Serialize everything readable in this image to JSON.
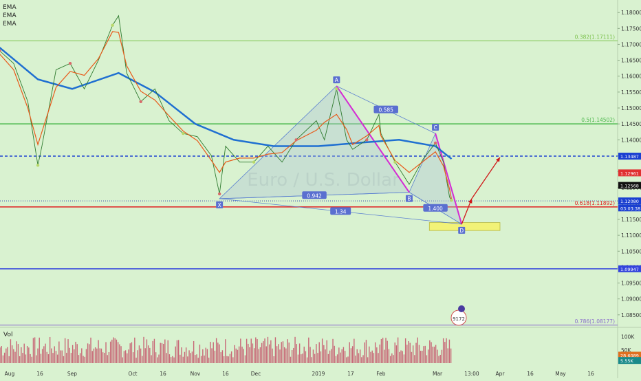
{
  "indicators": [
    "EMA",
    "EMA",
    "EMA"
  ],
  "watermark": "Euro / U.S. Dollar",
  "volume_label": "Vol",
  "x_labels": [
    "Aug",
    "16",
    "Sep",
    "Oct",
    "16",
    "Nov",
    "16",
    "Dec",
    "2019",
    "17",
    "Feb",
    "Mar",
    "13:00",
    "Apr",
    "16",
    "May",
    "16"
  ],
  "price_ticks": [
    "1.18000",
    "1.17500",
    "1.17000",
    "1.16500",
    "1.16000",
    "1.15500",
    "1.15000",
    "1.14500",
    "1.14000",
    "1.13500",
    "1.13000",
    "1.12500",
    "1.12000",
    "1.11500",
    "1.11000",
    "1.10500",
    "1.10000",
    "1.09500",
    "1.09000",
    "1.08500"
  ],
  "volume_ticks": [
    "100K",
    "50K"
  ],
  "fib_levels": [
    {
      "label": "0.382(1.17111)",
      "price": 1.17111,
      "color": "#7cc24c"
    },
    {
      "label": "0.5(1.14502)",
      "price": 1.14502,
      "color": "#4cb84c"
    },
    {
      "label": "0.618(1.11892)",
      "price": 1.11892,
      "color": "#e02020"
    },
    {
      "label": "0.786(1.08177)",
      "price": 1.08177,
      "color": "#8a6dcc"
    }
  ],
  "horizontal_lines": [
    {
      "price": 1.13487,
      "label": "1.13487",
      "style": "dashed",
      "color": "#1a3fd1"
    },
    {
      "price": 1.09947,
      "label": "1.09947",
      "style": "solid",
      "color": "#3344dd"
    },
    {
      "price": 1.1208,
      "label": "1.12080",
      "style": "dotted",
      "color": "#2a3fb0"
    }
  ],
  "price_badges": [
    {
      "text": "1.13487",
      "price": 1.13487,
      "bg": "#1a3fd1",
      "fg": "#ffffff"
    },
    {
      "text": "1.12961",
      "price": 1.12961,
      "bg": "#e03030",
      "fg": "#ffffff"
    },
    {
      "text": "1.12568",
      "price": 1.12568,
      "bg": "#111111",
      "fg": "#ffffff"
    },
    {
      "text": "1.12080",
      "price": 1.1208,
      "bg": "#1a3fd1",
      "fg": "#ffffff"
    },
    {
      "text": "03:03:38",
      "price": 1.1186,
      "bg": "#1a3fd1",
      "fg": "#ffffff"
    },
    {
      "text": "1.09947",
      "price": 1.09947,
      "bg": "#3344dd",
      "fg": "#ffffff"
    }
  ],
  "volume_badges": [
    {
      "text": "28.6089",
      "bg": "#e07020",
      "fg": "#ffffff"
    },
    {
      "text": "5.55K",
      "bg": "#1a8a8a",
      "fg": "#ffffff"
    }
  ],
  "pattern": {
    "points": [
      {
        "label": "X",
        "date": "2018-11-13",
        "price": 1.1215
      },
      {
        "label": "A",
        "date": "2019-01-10",
        "price": 1.1569
      },
      {
        "label": "B",
        "date": "2019-02-15",
        "price": 1.1235
      },
      {
        "label": "C",
        "date": "2019-02-28",
        "price": 1.142
      },
      {
        "label": "D",
        "date": "2019-03-13",
        "price": 1.1135
      }
    ],
    "ratios": [
      {
        "text": "0.942",
        "between": "XB"
      },
      {
        "text": "0.585",
        "between": "AC"
      },
      {
        "text": "1.400",
        "between": "BD"
      },
      {
        "text": "1.34",
        "between": "XD"
      }
    ]
  },
  "chart_data": {
    "type": "line",
    "title": "",
    "series": [
      {
        "name": "",
        "x": [
          "2018-07-27",
          "2018-08-03",
          "2018-08-10",
          "2018-08-15",
          "2018-08-17",
          "2018-08-24",
          "2018-08-31",
          "2018-09-07",
          "2018-09-14",
          "2018-09-21",
          "2018-09-24",
          "2018-09-28",
          "2018-10-05",
          "2018-10-12",
          "2018-10-19",
          "2018-10-26",
          "2018-11-02",
          "2018-11-09",
          "2018-11-13",
          "2018-11-16",
          "2018-11-23",
          "2018-11-30",
          "2018-12-07",
          "2018-12-14",
          "2018-12-21",
          "2018-12-31",
          "2019-01-04",
          "2019-01-10",
          "2019-01-15",
          "2019-01-18",
          "2019-01-25",
          "2019-01-31",
          "2019-02-01",
          "2019-02-08",
          "2019-02-15",
          "2019-02-22",
          "2019-02-28",
          "2019-03-04",
          "2019-03-07",
          "2019-03-08"
        ],
        "values": [
          1.168,
          1.164,
          1.152,
          1.132,
          1.138,
          1.162,
          1.164,
          1.156,
          1.165,
          1.176,
          1.179,
          1.161,
          1.152,
          1.156,
          1.146,
          1.142,
          1.141,
          1.135,
          1.123,
          1.138,
          1.133,
          1.133,
          1.138,
          1.133,
          1.14,
          1.146,
          1.14,
          1.156,
          1.14,
          1.137,
          1.14,
          1.148,
          1.142,
          1.133,
          1.126,
          1.134,
          1.139,
          1.133,
          1.122,
          1.121
        ]
      }
    ],
    "ema_long": {
      "x": [
        "2018-07-27",
        "2018-08-15",
        "2018-09-01",
        "2018-09-24",
        "2018-10-12",
        "2018-11-01",
        "2018-11-20",
        "2018-12-10",
        "2019-01-01",
        "2019-01-20",
        "2019-02-10",
        "2019-02-28",
        "2019-03-08"
      ],
      "values": [
        1.169,
        1.159,
        1.156,
        1.161,
        1.155,
        1.145,
        1.14,
        1.138,
        1.138,
        1.139,
        1.14,
        1.138,
        1.134
      ]
    },
    "projection": [
      {
        "from": {
          "date": "2019-03-13",
          "price": 1.1135
        },
        "to": {
          "date": "2019-03-18",
          "price": 1.1215
        }
      },
      {
        "from": {
          "date": "2019-03-18",
          "price": 1.1215
        },
        "to": {
          "date": "2019-04-01",
          "price": 1.1345
        }
      }
    ],
    "target_zone": {
      "from": "2019-02-25",
      "to": "2019-04-01",
      "price_top": 1.114,
      "price_bottom": 1.1115
    },
    "ylim": [
      1.0815,
      1.1835
    ],
    "y_scale": "linear",
    "volume_ylim": [
      0,
      130000
    ],
    "grid": false,
    "legend": "none"
  },
  "colors": {
    "background": "#d9f2d0",
    "price": "#e85a1a",
    "ema_long": "#1f6fd1",
    "pattern_fill": "#a8c0d8",
    "pattern_line": "#5a7fd0",
    "harmonic_leg": "#d42ad4",
    "volume": "#c23a5a",
    "projection": "#d01818",
    "zone": "#f2f277"
  }
}
